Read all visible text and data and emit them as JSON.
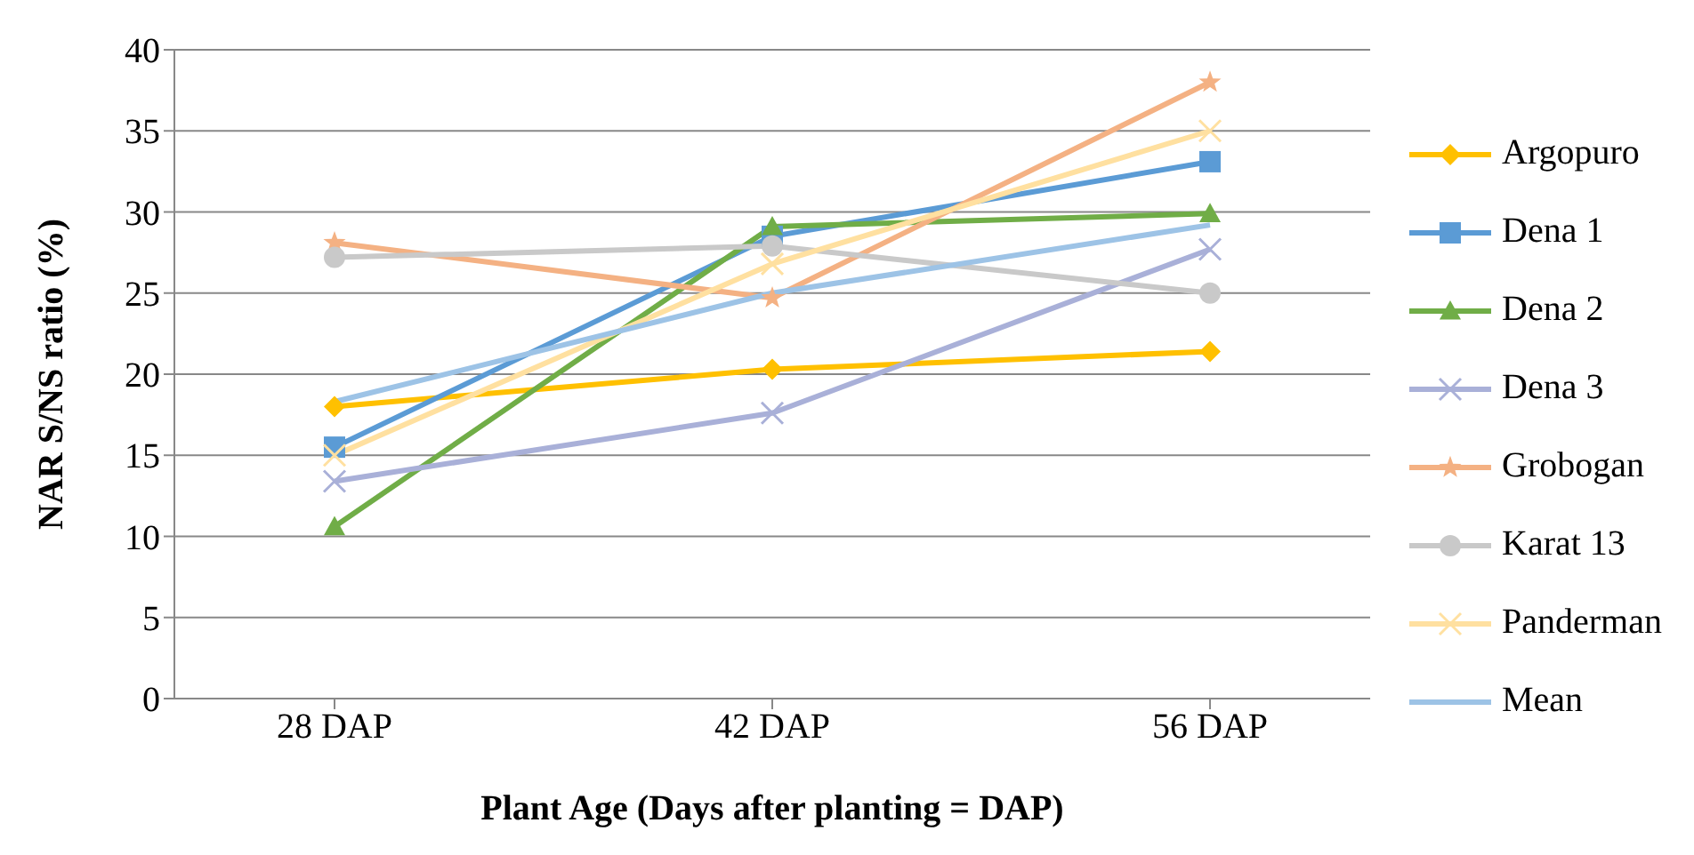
{
  "chart_data": {
    "type": "line",
    "xlabel": "Plant Age (Days after planting = DAP)",
    "ylabel": "NAR   S/NS ratio (%)",
    "categories": [
      "28 DAP",
      "42 DAP",
      "56 DAP"
    ],
    "series": [
      {
        "name": "Argopuro",
        "color": "#ffc000",
        "marker": "diamond",
        "values": [
          18.0,
          20.3,
          21.4
        ]
      },
      {
        "name": "Dena 1",
        "color": "#5b9bd5",
        "marker": "square",
        "values": [
          15.5,
          28.5,
          33.1
        ]
      },
      {
        "name": "Dena 2",
        "color": "#70ad47",
        "marker": "triangle",
        "values": [
          10.6,
          29.1,
          29.9
        ]
      },
      {
        "name": "Dena 3",
        "color": "#a9b0d8",
        "marker": "cross",
        "values": [
          13.4,
          17.6,
          27.7
        ]
      },
      {
        "name": "Grobogan",
        "color": "#f4b183",
        "marker": "star",
        "values": [
          28.1,
          24.7,
          38.0
        ]
      },
      {
        "name": "Karat 13",
        "color": "#c9c9c9",
        "marker": "circle",
        "values": [
          27.2,
          27.9,
          25.0
        ]
      },
      {
        "name": "Panderman",
        "color": "#ffe0a0",
        "marker": "cross",
        "values": [
          15.0,
          26.8,
          35.0
        ]
      },
      {
        "name": "Mean",
        "color": "#9dc3e6",
        "marker": "none",
        "values": [
          18.3,
          25.0,
          29.2
        ]
      }
    ],
    "ylim": [
      0,
      40
    ],
    "yticks": [
      0,
      5,
      10,
      15,
      20,
      25,
      30,
      35,
      40
    ],
    "grid": "y",
    "legend": "right"
  }
}
